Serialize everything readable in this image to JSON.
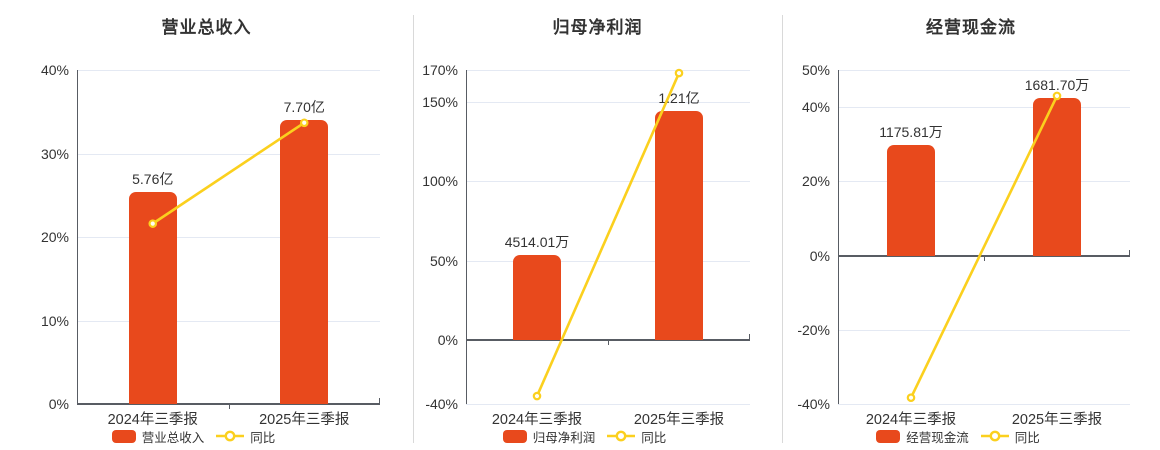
{
  "colors": {
    "bar": "#E8491C",
    "line": "#FBD01E",
    "marker_fill": "#FFFEF5",
    "grid": "#E4E9F3",
    "axis": "#585C63",
    "text": "#333333",
    "divider": "#D9D9D9"
  },
  "chart_data": [
    {
      "type": "bar+line",
      "title": "营业总收入",
      "categories": [
        "2024年三季报",
        "2025年三季报"
      ],
      "bar_series": {
        "name": "营业总收入",
        "values": [
          576000000,
          770000000
        ],
        "value_labels": [
          "5.76亿",
          "7.70亿"
        ]
      },
      "line_series": {
        "name": "同比",
        "unit": "%",
        "values": [
          21.6,
          33.68
        ]
      },
      "ylim": [
        0,
        40
      ],
      "y_ticks": [
        {
          "v": 40,
          "label": "40%"
        },
        {
          "v": 30,
          "label": "30%"
        },
        {
          "v": 20,
          "label": "20%"
        },
        {
          "v": 10,
          "label": "10%"
        },
        {
          "v": 0,
          "label": "0%"
        }
      ],
      "grid": true,
      "legend_position": "bottom"
    },
    {
      "type": "bar+line",
      "title": "归母净利润",
      "categories": [
        "2024年三季报",
        "2025年三季报"
      ],
      "bar_series": {
        "name": "归母净利润",
        "values": [
          45140100,
          121000000
        ],
        "value_labels": [
          "4514.01万",
          "1.21亿"
        ]
      },
      "line_series": {
        "name": "同比",
        "unit": "%",
        "values": [
          -35.0,
          168.07
        ]
      },
      "ylim": [
        -40,
        170
      ],
      "y_ticks": [
        {
          "v": 170,
          "label": "170%"
        },
        {
          "v": 150,
          "label": "150%"
        },
        {
          "v": 100,
          "label": "100%"
        },
        {
          "v": 50,
          "label": "50%"
        },
        {
          "v": 0,
          "label": "0%"
        },
        {
          "v": -40,
          "label": "-40%"
        }
      ],
      "grid": true,
      "legend_position": "bottom"
    },
    {
      "type": "bar+line",
      "title": "经营现金流",
      "categories": [
        "2024年三季报",
        "2025年三季报"
      ],
      "bar_series": {
        "name": "经营现金流",
        "values": [
          11758100,
          16817000
        ],
        "value_labels": [
          "1175.81万",
          "1681.70万"
        ]
      },
      "line_series": {
        "name": "同比",
        "unit": "%",
        "values": [
          -38.3,
          43.02
        ]
      },
      "ylim": [
        -40,
        50
      ],
      "y_ticks": [
        {
          "v": 50,
          "label": "50%"
        },
        {
          "v": 40,
          "label": "40%"
        },
        {
          "v": 20,
          "label": "20%"
        },
        {
          "v": 0,
          "label": "0%"
        },
        {
          "v": -20,
          "label": "-20%"
        },
        {
          "v": -40,
          "label": "-40%"
        }
      ],
      "grid": true,
      "legend_position": "bottom"
    }
  ]
}
